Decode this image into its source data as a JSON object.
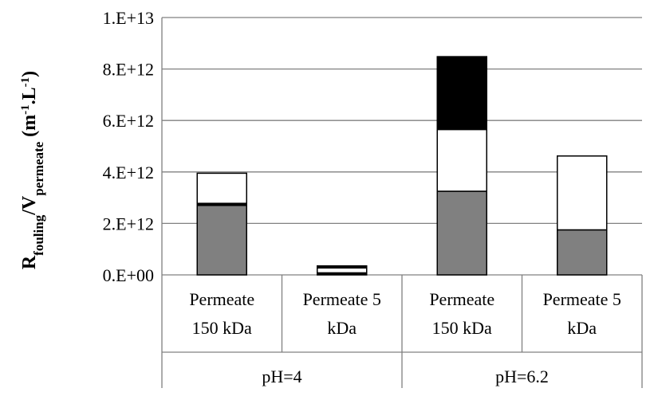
{
  "chart_data": {
    "type": "bar",
    "stacked": true,
    "title": "",
    "ylabel": {
      "parts": [
        {
          "text": "R",
          "style": "normal"
        },
        {
          "text": "fouling",
          "style": "sub"
        },
        {
          "text": "/V",
          "style": "normal"
        },
        {
          "text": "permeate",
          "style": "sub"
        },
        {
          "text": " (m",
          "style": "normal"
        },
        {
          "text": "-1",
          "style": "sup"
        },
        {
          "text": ".L",
          "style": "normal"
        },
        {
          "text": "-1",
          "style": "sup"
        },
        {
          "text": ")",
          "style": "normal"
        }
      ]
    },
    "ylim": [
      0,
      10000000000000
    ],
    "yticks": [
      0,
      2000000000000,
      4000000000000,
      6000000000000,
      8000000000000,
      10000000000000
    ],
    "ytick_labels": [
      "0.E+00",
      "2.E+12",
      "4.E+12",
      "6.E+12",
      "8.E+12",
      "1.E+13"
    ],
    "grid": "horizontal",
    "legend": "none",
    "categories": [
      {
        "lines": [
          "Permeate",
          "150 kDa"
        ],
        "group": "pH=4"
      },
      {
        "lines": [
          "Permeate 5",
          "kDa"
        ],
        "group": "pH=4"
      },
      {
        "lines": [
          "Permeate",
          "150 kDa"
        ],
        "group": "pH=6.2"
      },
      {
        "lines": [
          "Permeate 5",
          "kDa"
        ],
        "group": "pH=6.2"
      }
    ],
    "groups": [
      "pH=4",
      "pH=6.2"
    ],
    "series": [
      {
        "color": "#808080",
        "values": [
          2700000000000,
          0,
          3250000000000,
          1750000000000
        ]
      },
      {
        "color": "#000000",
        "values": [
          80000000000,
          80000000000,
          0,
          0
        ]
      },
      {
        "color": "#ffffff",
        "values": [
          1170000000000,
          190000000000,
          2400000000000,
          2870000000000
        ]
      },
      {
        "color": "#000000",
        "values": [
          0,
          80000000000,
          2830000000000,
          0
        ]
      }
    ]
  }
}
